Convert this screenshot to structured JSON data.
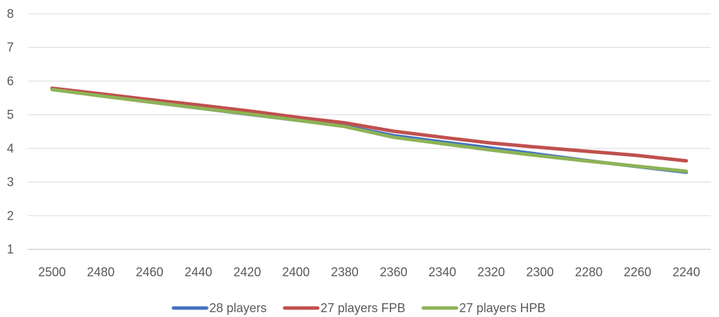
{
  "chart_data": {
    "type": "line",
    "title": "",
    "xlabel": "",
    "ylabel": "",
    "categories": [
      "2500",
      "2480",
      "2460",
      "2440",
      "2420",
      "2400",
      "2380",
      "2360",
      "2340",
      "2320",
      "2300",
      "2280",
      "2260",
      "2240"
    ],
    "ylim": [
      1,
      8
    ],
    "yticks": [
      "1",
      "2",
      "3",
      "4",
      "5",
      "6",
      "7",
      "8"
    ],
    "grid": true,
    "legend_position": "bottom",
    "series": [
      {
        "name": "28 players",
        "color": "#4472C4",
        "values": [
          5.77,
          5.57,
          5.38,
          5.2,
          5.02,
          4.84,
          4.67,
          4.38,
          4.19,
          4.01,
          3.82,
          3.63,
          3.46,
          3.29
        ]
      },
      {
        "name": "27 players FPB",
        "color": "#C0504D",
        "values": [
          5.79,
          5.62,
          5.45,
          5.29,
          5.12,
          4.93,
          4.76,
          4.51,
          4.33,
          4.16,
          4.03,
          3.91,
          3.79,
          3.63
        ]
      },
      {
        "name": "27 players HPB",
        "color": "#8DB356",
        "values": [
          5.75,
          5.56,
          5.38,
          5.2,
          5.03,
          4.84,
          4.65,
          4.33,
          4.14,
          3.95,
          3.78,
          3.62,
          3.47,
          3.32
        ]
      }
    ]
  }
}
